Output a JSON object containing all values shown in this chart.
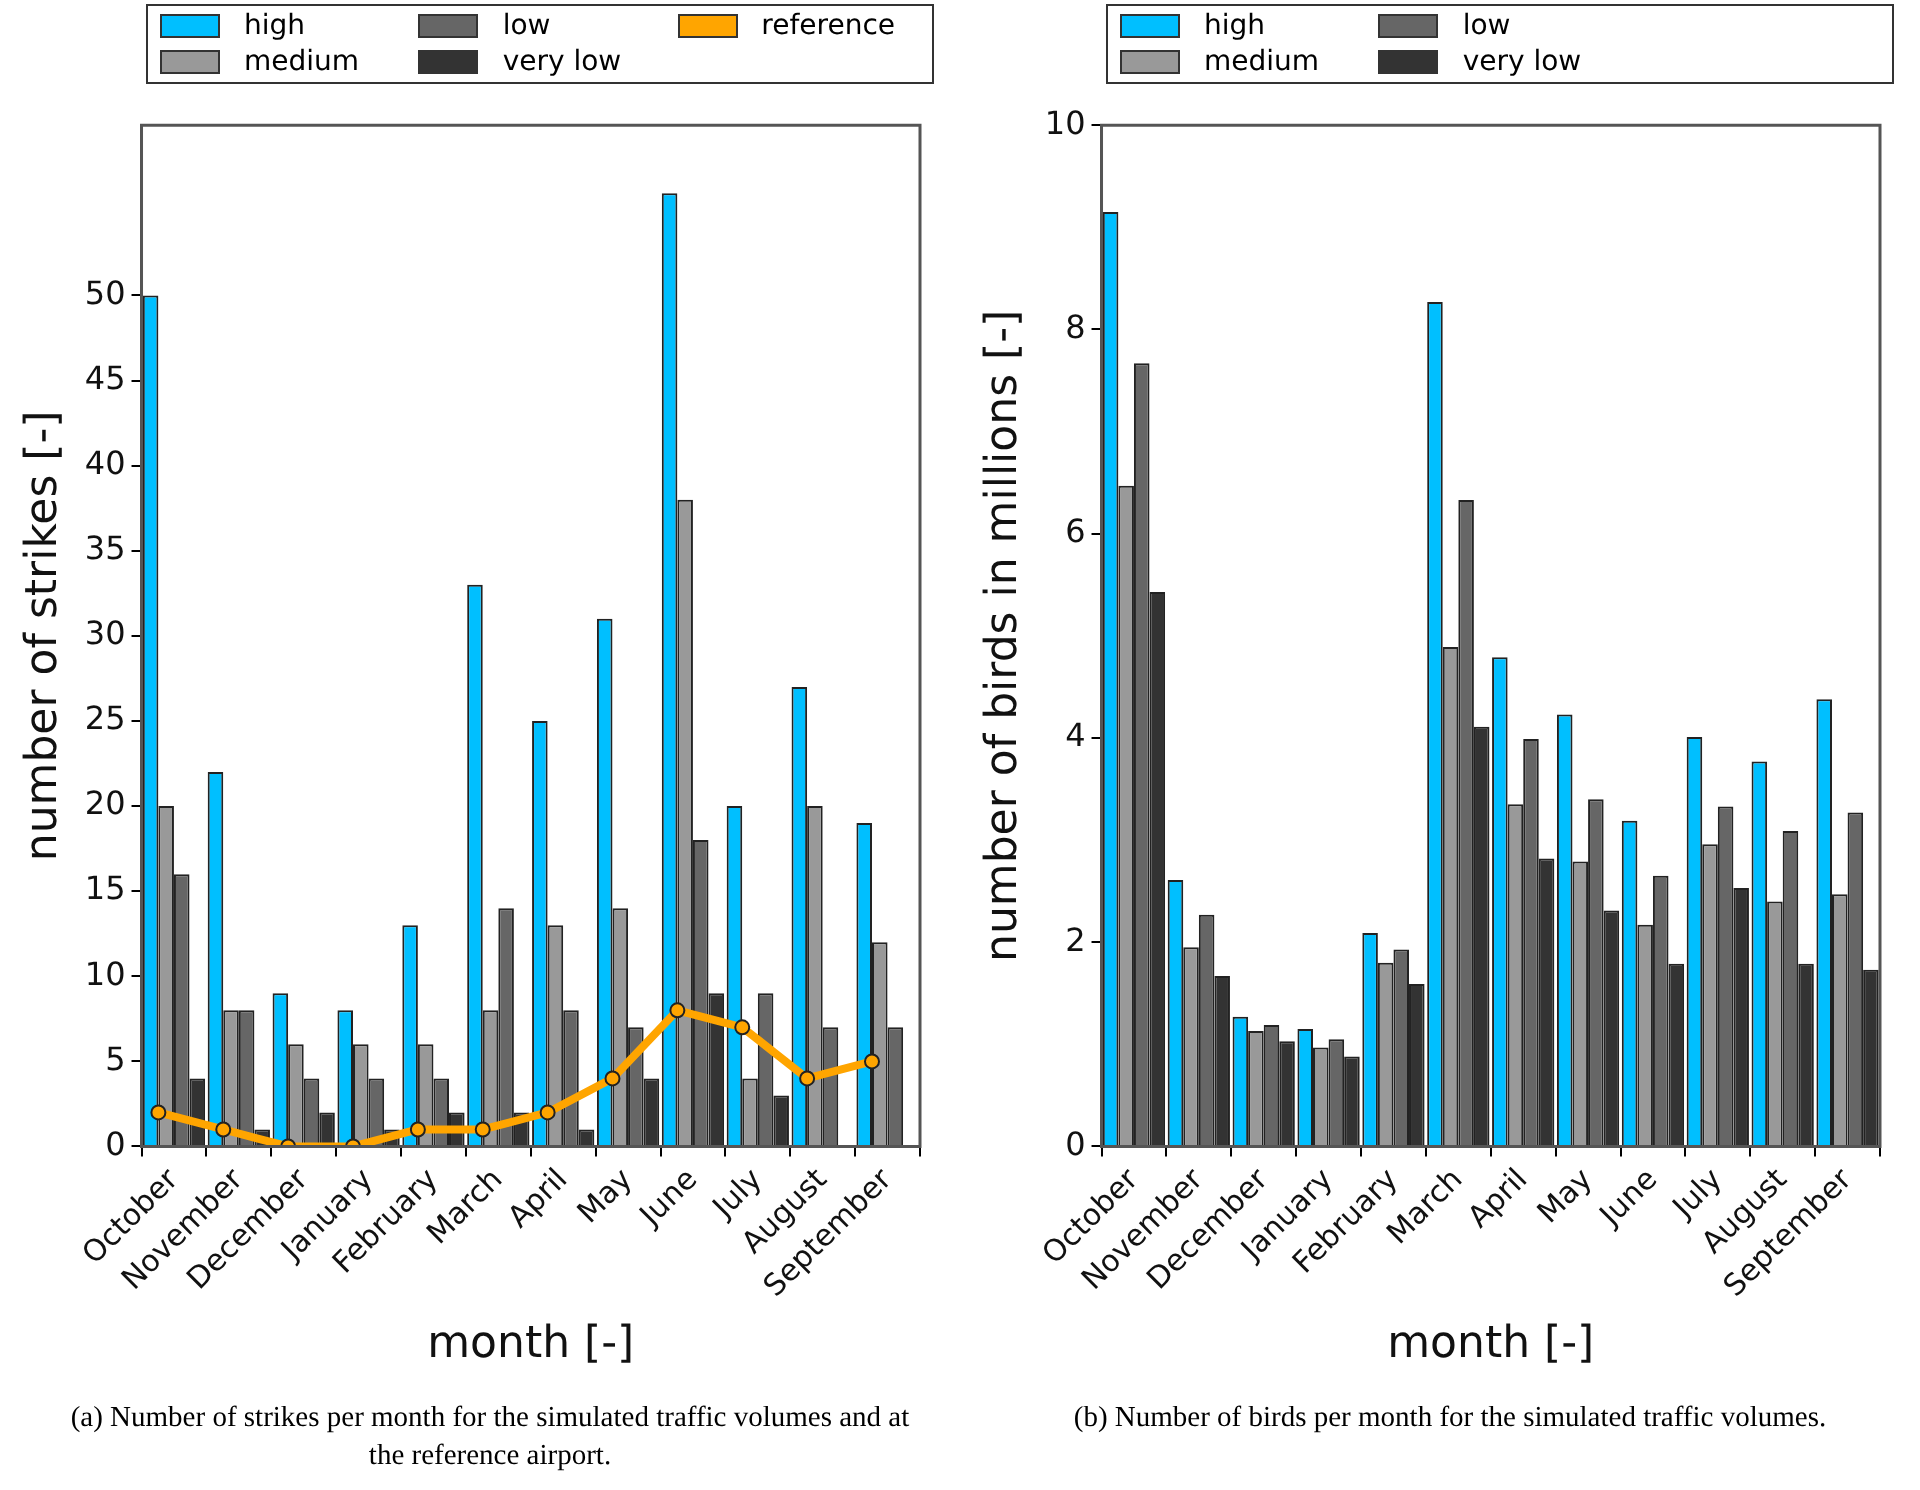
{
  "chart_data": [
    {
      "type": "bar",
      "xlabel": "month [-]",
      "ylabel": "number of strikes [-]",
      "categories": [
        "October",
        "November",
        "December",
        "January",
        "February",
        "March",
        "April",
        "May",
        "June",
        "July",
        "August",
        "September"
      ],
      "ylim": [
        0,
        60
      ],
      "yticks": [
        0,
        5,
        10,
        15,
        20,
        25,
        30,
        35,
        40,
        45,
        50
      ],
      "grid": false,
      "legend": "top",
      "annotations": [
        "(a) Number of strikes per month for the simulated traffic volumes and at the reference airport."
      ],
      "series": [
        {
          "name": "high",
          "color": "#00bfff",
          "values": [
            50,
            22,
            9,
            8,
            13,
            33,
            25,
            31,
            56,
            20,
            27,
            19
          ]
        },
        {
          "name": "medium",
          "color": "#999999",
          "values": [
            20,
            8,
            6,
            6,
            6,
            8,
            13,
            14,
            38,
            4,
            20,
            12
          ]
        },
        {
          "name": "low",
          "color": "#666666",
          "values": [
            16,
            8,
            4,
            4,
            4,
            14,
            8,
            7,
            18,
            9,
            7,
            7
          ]
        },
        {
          "name": "very low",
          "color": "#333333",
          "values": [
            4,
            1,
            2,
            1,
            2,
            2,
            1,
            4,
            9,
            3,
            0,
            0
          ]
        },
        {
          "name": "reference",
          "type": "line",
          "marker": "circle",
          "color": "#ffa500",
          "values": [
            2,
            1,
            0,
            0,
            1,
            1,
            2,
            4,
            8,
            7,
            4,
            5
          ]
        }
      ]
    },
    {
      "type": "bar",
      "xlabel": "month [-]",
      "ylabel": "number of birds in millions [-]",
      "categories": [
        "October",
        "November",
        "December",
        "January",
        "February",
        "March",
        "April",
        "May",
        "June",
        "July",
        "August",
        "September"
      ],
      "ylim": [
        0,
        10
      ],
      "yticks": [
        0,
        2,
        4,
        6,
        8,
        10
      ],
      "grid": false,
      "legend": "top",
      "annotations": [
        "(b) Number of birds per month for the simulated traffic volumes."
      ],
      "series": [
        {
          "name": "high",
          "color": "#00bfff",
          "values": [
            9.15,
            2.61,
            1.27,
            1.15,
            2.09,
            8.27,
            4.79,
            4.23,
            3.19,
            4.01,
            3.77,
            4.38
          ]
        },
        {
          "name": "medium",
          "color": "#999999",
          "values": [
            6.47,
            1.95,
            1.13,
            0.97,
            1.8,
            4.89,
            3.35,
            2.79,
            2.17,
            2.96,
            2.4,
            2.47
          ]
        },
        {
          "name": "low",
          "color": "#666666",
          "values": [
            7.67,
            2.27,
            1.19,
            1.05,
            1.93,
            6.33,
            3.99,
            3.4,
            2.65,
            3.33,
            3.09,
            3.27
          ]
        },
        {
          "name": "very low",
          "color": "#333333",
          "values": [
            5.43,
            1.67,
            1.03,
            0.88,
            1.59,
            4.11,
            2.82,
            2.31,
            1.79,
            2.53,
            1.79,
            1.73
          ]
        }
      ]
    }
  ]
}
